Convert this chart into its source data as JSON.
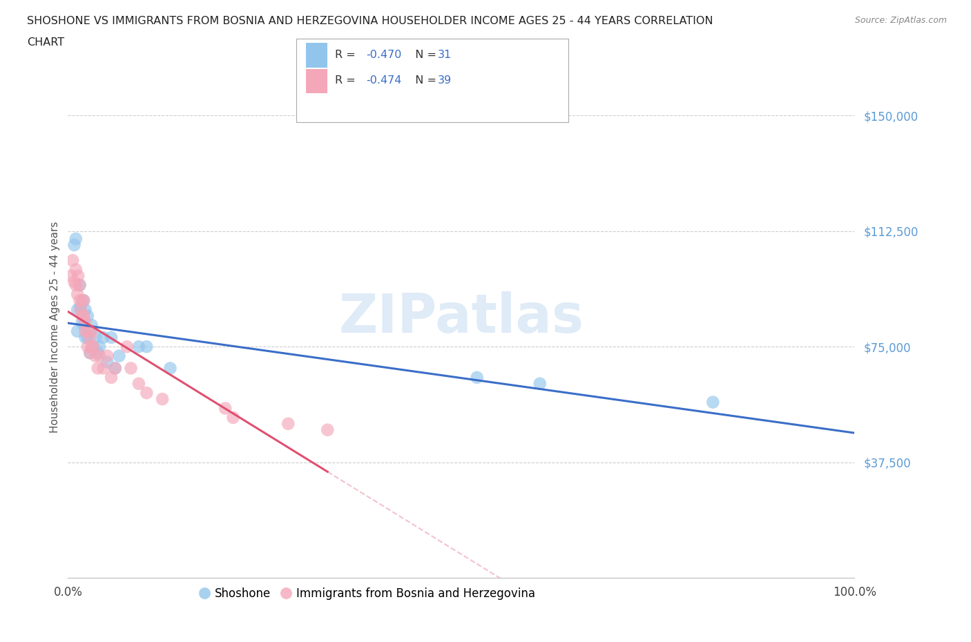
{
  "title_line1": "SHOSHONE VS IMMIGRANTS FROM BOSNIA AND HERZEGOVINA HOUSEHOLDER INCOME AGES 25 - 44 YEARS CORRELATION",
  "title_line2": "CHART",
  "source": "Source: ZipAtlas.com",
  "ylabel": "Householder Income Ages 25 - 44 years",
  "xlim": [
    0.0,
    1.0
  ],
  "ylim": [
    0,
    162500
  ],
  "yticks": [
    37500,
    75000,
    112500,
    150000
  ],
  "ytick_labels": [
    "$37,500",
    "$75,000",
    "$112,500",
    "$150,000"
  ],
  "xtick_positions": [
    0.0,
    1.0
  ],
  "xtick_labels": [
    "0.0%",
    "100.0%"
  ],
  "color_shoshone": "#92C5EC",
  "color_bosnia": "#F4A7B9",
  "color_line_shoshone": "#3A6EC8",
  "color_line_bosnia": "#E05070",
  "color_ytick": "#5B9BD5",
  "watermark": "ZIPatlas",
  "shoshone_x": [
    0.008,
    0.01,
    0.012,
    0.012,
    0.015,
    0.016,
    0.018,
    0.02,
    0.02,
    0.022,
    0.022,
    0.025,
    0.025,
    0.028,
    0.028,
    0.03,
    0.032,
    0.035,
    0.038,
    0.04,
    0.045,
    0.05,
    0.055,
    0.06,
    0.065,
    0.09,
    0.1,
    0.13,
    0.52,
    0.6,
    0.82
  ],
  "shoshone_y": [
    108000,
    110000,
    87000,
    80000,
    95000,
    88000,
    83000,
    90000,
    82000,
    87000,
    78000,
    85000,
    78000,
    80000,
    73000,
    82000,
    75000,
    78000,
    73000,
    75000,
    78000,
    70000,
    78000,
    68000,
    72000,
    75000,
    75000,
    68000,
    65000,
    63000,
    57000
  ],
  "bosnia_x": [
    0.004,
    0.006,
    0.008,
    0.01,
    0.01,
    0.012,
    0.013,
    0.015,
    0.015,
    0.016,
    0.018,
    0.018,
    0.02,
    0.02,
    0.022,
    0.022,
    0.025,
    0.025,
    0.028,
    0.028,
    0.03,
    0.03,
    0.032,
    0.035,
    0.038,
    0.04,
    0.045,
    0.05,
    0.055,
    0.06,
    0.075,
    0.08,
    0.09,
    0.1,
    0.12,
    0.2,
    0.21,
    0.28,
    0.33
  ],
  "bosnia_y": [
    98000,
    103000,
    96000,
    100000,
    95000,
    92000,
    98000,
    95000,
    90000,
    87000,
    90000,
    85000,
    90000,
    85000,
    83000,
    80000,
    80000,
    75000,
    78000,
    73000,
    80000,
    75000,
    75000,
    72000,
    68000,
    72000,
    68000,
    72000,
    65000,
    68000,
    75000,
    68000,
    63000,
    60000,
    58000,
    55000,
    52000,
    50000,
    48000
  ]
}
